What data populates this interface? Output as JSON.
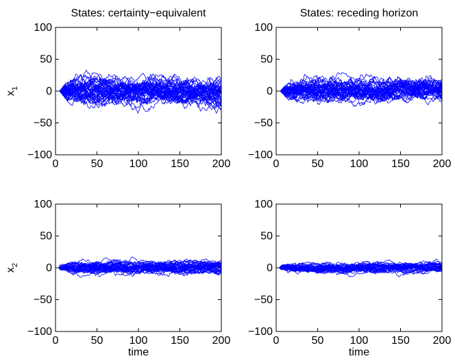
{
  "chart_data": [
    {
      "type": "line",
      "title": "States: certainty−equivalent",
      "ylabel": "x",
      "ylabel_sub": "1",
      "xlabel": "",
      "xlim": [
        0,
        200
      ],
      "ylim": [
        -100,
        100
      ],
      "xticks": [
        "0",
        "50",
        "100",
        "150",
        "200"
      ],
      "yticks": [
        "100",
        "50",
        "0",
        "−50",
        "−100"
      ],
      "grid": false,
      "series_count": 40,
      "n_points": 200,
      "line_color": "#0000ff",
      "amplitude": 28,
      "envelope": [
        [
          0,
          0
        ],
        [
          5,
          0
        ],
        [
          25,
          35
        ],
        [
          60,
          75
        ],
        [
          100,
          70
        ],
        [
          130,
          80
        ],
        [
          200,
          65
        ]
      ],
      "seed": 11
    },
    {
      "type": "line",
      "title": "States: receding horizon",
      "ylabel": "",
      "ylabel_sub": "",
      "xlabel": "",
      "xlim": [
        0,
        200
      ],
      "ylim": [
        -100,
        100
      ],
      "xticks": [
        "0",
        "50",
        "100",
        "150",
        "200"
      ],
      "yticks": [
        "100",
        "50",
        "0",
        "−50",
        "−100"
      ],
      "grid": false,
      "series_count": 40,
      "n_points": 200,
      "line_color": "#0000ff",
      "amplitude": 24,
      "envelope": [
        [
          0,
          0
        ],
        [
          5,
          0
        ],
        [
          25,
          30
        ],
        [
          60,
          65
        ],
        [
          100,
          55
        ],
        [
          130,
          68
        ],
        [
          200,
          50
        ]
      ],
      "seed": 23
    },
    {
      "type": "line",
      "title": "",
      "ylabel": "x",
      "ylabel_sub": "2",
      "xlabel": "time",
      "xlim": [
        0,
        200
      ],
      "ylim": [
        -100,
        100
      ],
      "xticks": [
        "0",
        "50",
        "100",
        "150",
        "200"
      ],
      "yticks": [
        "100",
        "50",
        "0",
        "−50",
        "−100"
      ],
      "grid": false,
      "series_count": 40,
      "n_points": 200,
      "line_color": "#0000ff",
      "amplitude": 13,
      "envelope": [
        [
          0,
          28
        ],
        [
          200,
          30
        ]
      ],
      "seed": 37
    },
    {
      "type": "line",
      "title": "",
      "ylabel": "",
      "ylabel_sub": "",
      "xlabel": "time",
      "xlim": [
        0,
        200
      ],
      "ylim": [
        -100,
        100
      ],
      "xticks": [
        "0",
        "50",
        "100",
        "150",
        "200"
      ],
      "yticks": [
        "100",
        "50",
        "0",
        "−50",
        "−100"
      ],
      "grid": false,
      "series_count": 40,
      "n_points": 200,
      "line_color": "#0000ff",
      "amplitude": 11,
      "envelope": [
        [
          0,
          25
        ],
        [
          200,
          25
        ]
      ],
      "seed": 53
    }
  ]
}
